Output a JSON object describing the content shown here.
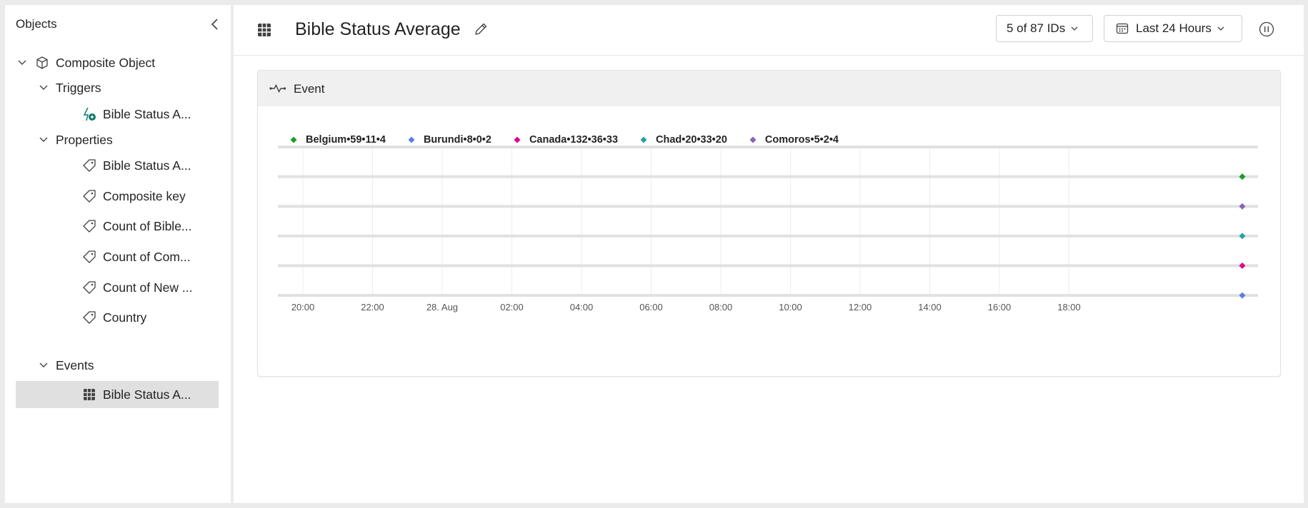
{
  "sidebar": {
    "title": "Objects",
    "tree": {
      "root": {
        "label": "Composite Object",
        "icon": "cube-icon"
      },
      "triggers": {
        "label": "Triggers",
        "items": [
          {
            "label": "Bible Status A...",
            "icon": "trigger-icon"
          }
        ]
      },
      "properties": {
        "label": "Properties",
        "items": [
          {
            "label": "Bible Status A...",
            "icon": "tag-icon"
          },
          {
            "label": "Composite key",
            "icon": "tag-icon"
          },
          {
            "label": "Count of Bible...",
            "icon": "tag-icon"
          },
          {
            "label": "Count of Com...",
            "icon": "tag-icon"
          },
          {
            "label": "Count of New ...",
            "icon": "tag-icon"
          },
          {
            "label": "Country",
            "icon": "tag-icon"
          }
        ]
      },
      "events": {
        "label": "Events",
        "items": [
          {
            "label": "Bible Status A...",
            "icon": "table-icon",
            "selected": true
          }
        ]
      }
    }
  },
  "header": {
    "title": "Bible Status Average",
    "ids_selector": "5 of 87 IDs",
    "time_range": "Last 24 Hours"
  },
  "card": {
    "title": "Event"
  },
  "colors": {
    "Belgium": "#1a9c2b",
    "Burundi": "#5b7fe0",
    "Canada": "#e3008c",
    "Chad": "#2aa0a4",
    "Comoros": "#8764b8"
  },
  "chart_data": {
    "type": "scatter",
    "title": "Event",
    "legend_position": "top-left",
    "grid": true,
    "x_ticks": [
      "20:00",
      "22:00",
      "28. Aug",
      "02:00",
      "04:00",
      "06:00",
      "08:00",
      "10:00",
      "12:00",
      "14:00",
      "16:00",
      "18:00"
    ],
    "x_range": [
      "20:00",
      "18:00 + ~55 min"
    ],
    "series": [
      {
        "name": "Belgium",
        "legend_label": "Belgium•59•11•4",
        "values": [
          59,
          11,
          4
        ],
        "lane": 1,
        "x": "~18:55"
      },
      {
        "name": "Comoros",
        "legend_label": "Comoros•5•2•4",
        "values": [
          5,
          2,
          4
        ],
        "lane": 2,
        "x": "~18:55"
      },
      {
        "name": "Chad",
        "legend_label": "Chad•20•33•20",
        "values": [
          20,
          33,
          20
        ],
        "lane": 3,
        "x": "~18:55"
      },
      {
        "name": "Canada",
        "legend_label": "Canada•132•36•33",
        "values": [
          132,
          36,
          33
        ],
        "lane": 4,
        "x": "~18:55"
      },
      {
        "name": "Burundi",
        "legend_label": "Burundi•8•0•2",
        "values": [
          8,
          0,
          2
        ],
        "lane": 5,
        "x": "~18:55"
      }
    ],
    "legend_order": [
      "Belgium",
      "Burundi",
      "Canada",
      "Chad",
      "Comoros"
    ]
  }
}
